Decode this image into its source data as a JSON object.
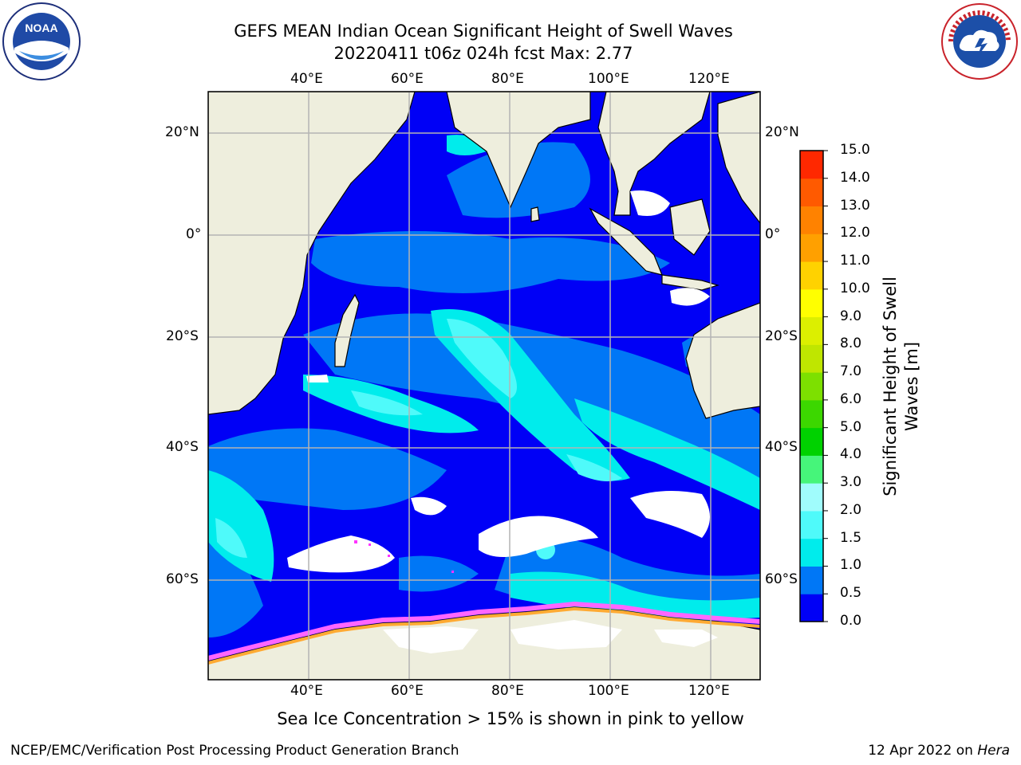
{
  "title": {
    "line1": "GEFS MEAN Indian Ocean Significant Height of Swell Waves",
    "line2": "20220411 t06z 024h fcst   Max: 2.77"
  },
  "axes": {
    "lon_labels": [
      "40°E",
      "60°E",
      "80°E",
      "100°E",
      "120°E"
    ],
    "lat_labels": [
      "20°N",
      "0°",
      "20°S",
      "40°S",
      "60°S"
    ]
  },
  "map": {
    "region": "Indian Ocean",
    "lon_range": [
      20,
      130
    ],
    "lat_range": [
      -70,
      28
    ],
    "land_color": "#eeeedd",
    "grid_color": "#b4b4b4"
  },
  "colorbar": {
    "title_line1": "Significant Height of Swell",
    "title_line2": "Waves [m]",
    "tick_labels": [
      "0.0",
      "0.5",
      "1.0",
      "1.5",
      "2.0",
      "3.0",
      "4.0",
      "5.0",
      "6.0",
      "7.0",
      "8.0",
      "9.0",
      "10.0",
      "11.0",
      "12.0",
      "13.0",
      "14.0",
      "15.0"
    ],
    "colors": [
      "#0000f6",
      "#0077f6",
      "#00ecec",
      "#4ffafa",
      "#a0fcfc",
      "#46f57a",
      "#00d200",
      "#3cd700",
      "#7de000",
      "#bfe600",
      "#dcef00",
      "#ffff00",
      "#ffd200",
      "#ffa000",
      "#ff8200",
      "#ff5a00",
      "#ff2800"
    ]
  },
  "notes": {
    "ice": "Sea Ice Concentration > 15% is shown in pink to yellow",
    "footer_left": "NCEP/EMC/Verification Post Processing Product Generation Branch",
    "footer_right_prefix": "12 Apr 2022 on ",
    "footer_right_host": "Hera"
  },
  "logos": {
    "noaa": "NOAA",
    "nws": "NATIONAL WEATHER SERVICE"
  }
}
